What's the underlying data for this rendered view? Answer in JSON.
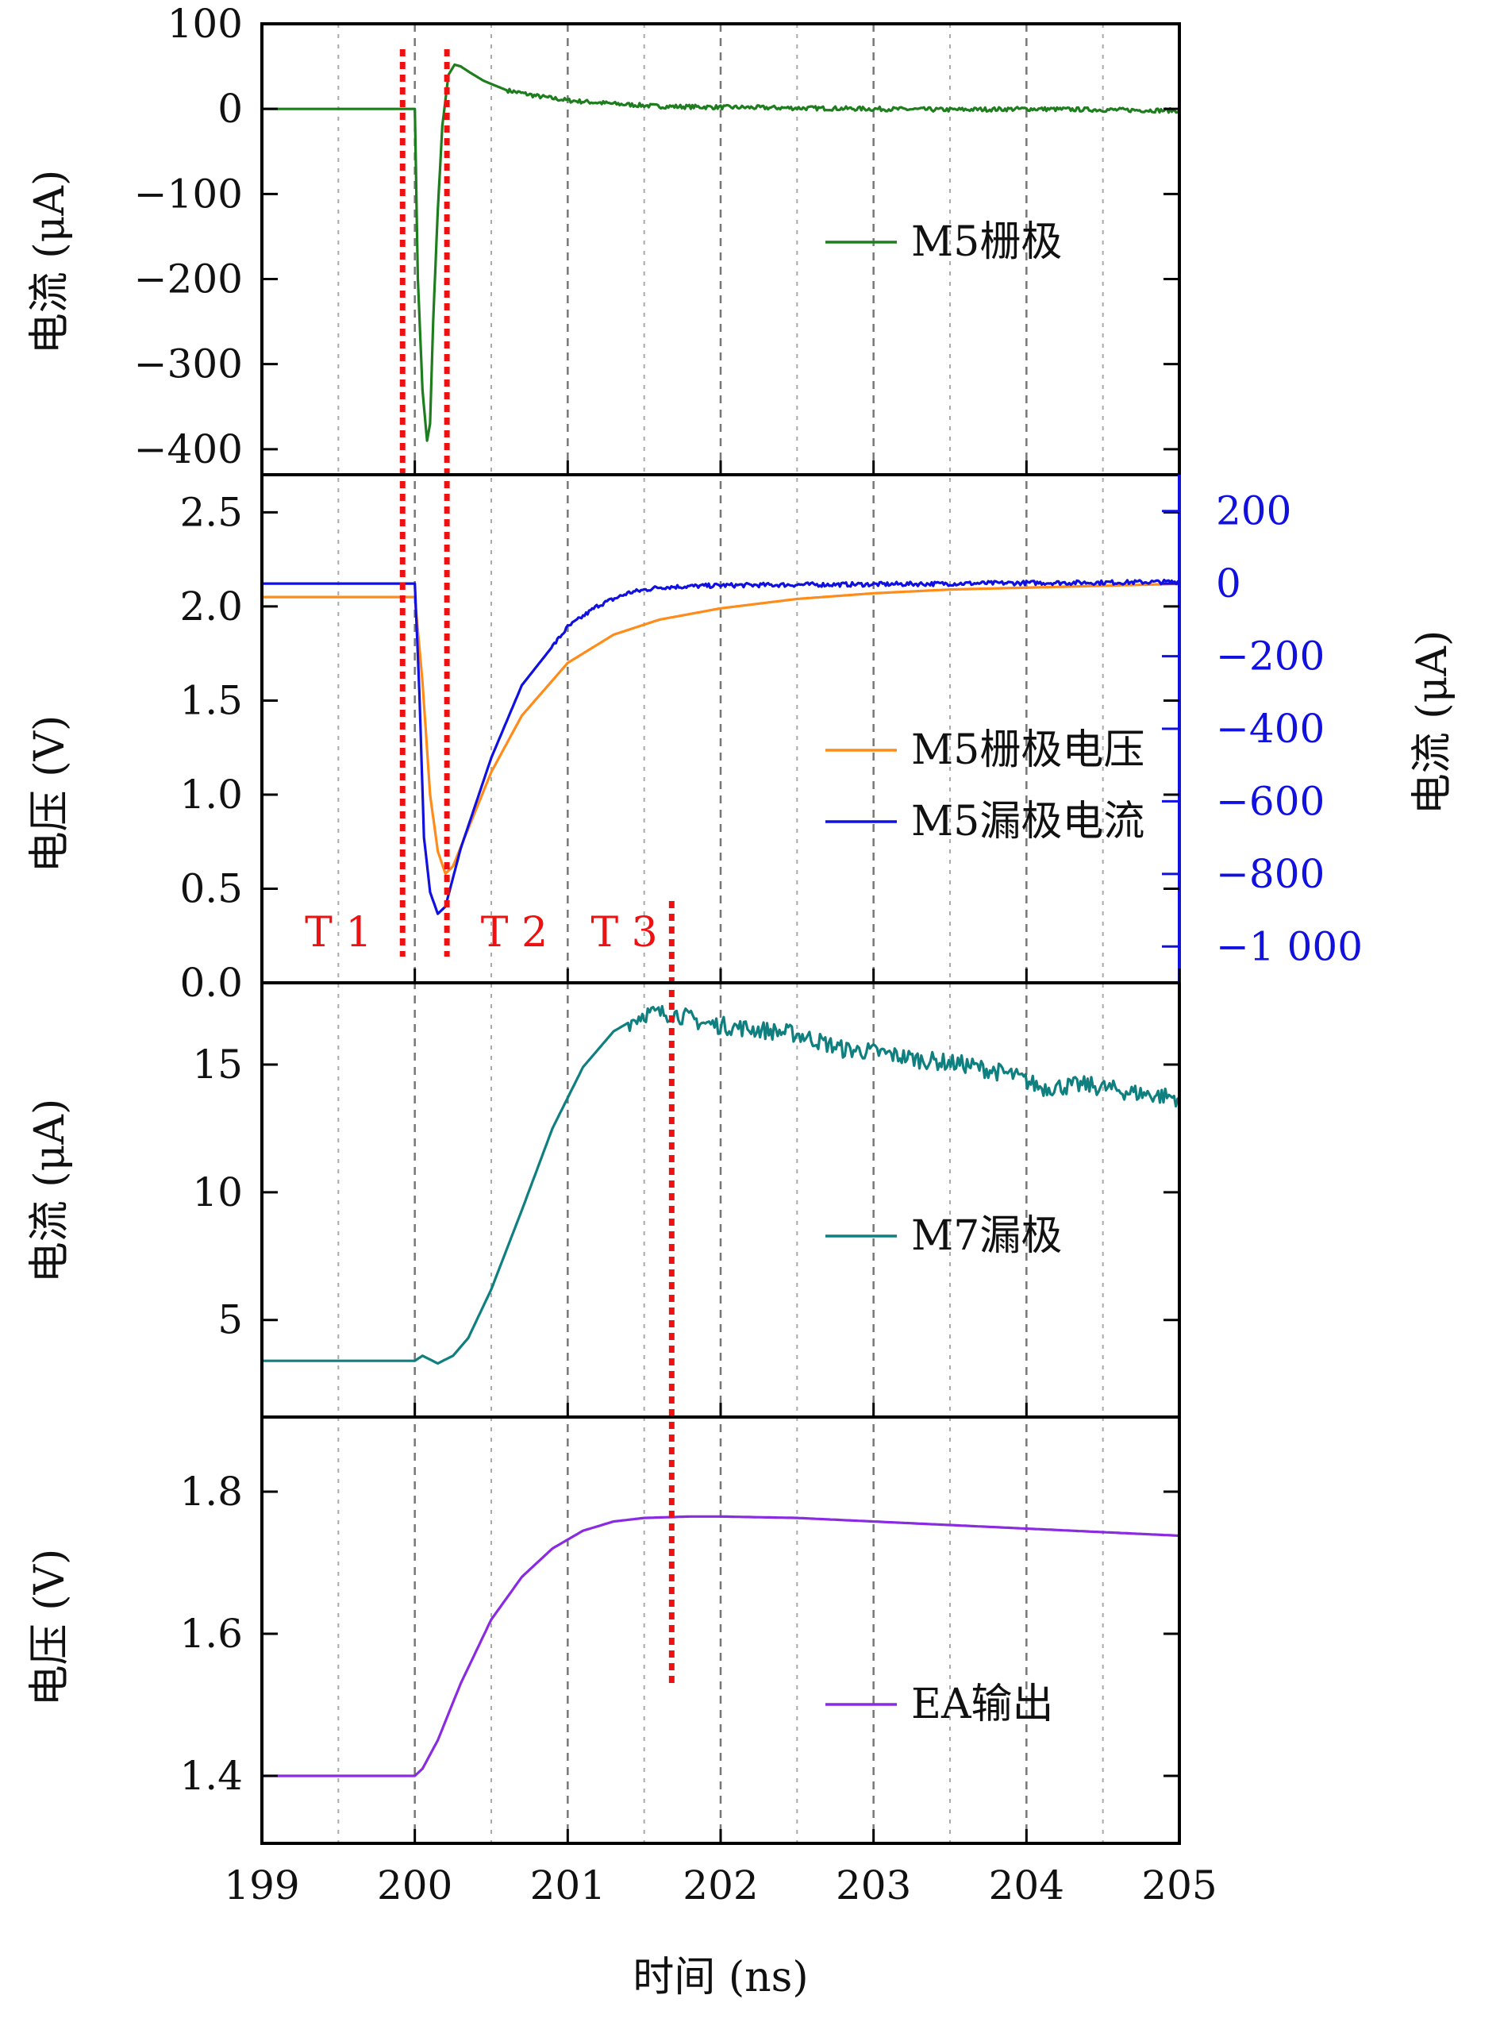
{
  "chart_data": {
    "type": "line",
    "xlabel": "时间 (ns)",
    "xlim": [
      199,
      205
    ],
    "xticks": [
      199,
      200,
      201,
      202,
      203,
      204,
      205
    ],
    "xgrid": [
      199.5,
      200,
      200.5,
      201,
      201.5,
      202,
      202.5,
      203,
      203.5,
      204,
      204.5
    ],
    "colors": {
      "m5_gate": "#1e7e1e",
      "m5_gate_voltage": "#ff8c1a",
      "m5_drain_current": "#1010e0",
      "m7_drain": "#0f7f7f",
      "ea_output": "#8a2be2",
      "markers": "#ee1111",
      "right_axis": "#1010e0"
    },
    "panels": [
      {
        "ylabel": "电流 (μA)",
        "ylim": [
          -430,
          100
        ],
        "yticks": [
          100,
          0,
          -100,
          -200,
          -300,
          -400
        ],
        "ytick_labels": [
          "100",
          "0",
          "−100",
          "−200",
          "−300",
          "−400"
        ],
        "legend_position": "right",
        "series": [
          {
            "name": "M5栅极",
            "color": "#1e7e1e",
            "x": [
              199,
              200.0,
              200.02,
              200.05,
              200.08,
              200.1,
              200.12,
              200.15,
              200.18,
              200.22,
              200.26,
              200.3,
              200.35,
              200.45,
              200.6,
              200.8,
              201.0,
              201.3,
              201.6,
              202.0,
              202.5,
              203.0,
              203.5,
              204.0,
              204.5,
              205.0
            ],
            "y": [
              0,
              0,
              -200,
              -330,
              -390,
              -370,
              -250,
              -120,
              -20,
              40,
              52,
              50,
              44,
              33,
              22,
              15,
              10,
              6,
              3,
              2,
              1,
              0,
              -1,
              0,
              -1,
              -2
            ]
          }
        ]
      },
      {
        "ylabel": "电压 (V)",
        "ylim": [
          0,
          2.7
        ],
        "yticks": [
          0.0,
          0.5,
          1.0,
          1.5,
          2.0,
          2.5
        ],
        "ytick_labels": [
          "0.0",
          "0.5",
          "1.0",
          "1.5",
          "2.0",
          "2.5"
        ],
        "y2label": "电流 (μA)",
        "y2lim": [
          -1100,
          300
        ],
        "y2ticks": [
          200,
          0,
          -200,
          -400,
          -600,
          -800,
          -1000
        ],
        "y2tick_labels": [
          "200",
          "0",
          "−200",
          "−400",
          "−600",
          "−800",
          "−1 000"
        ],
        "legend_position": "center-right",
        "series": [
          {
            "name": "M5栅极电压",
            "color": "#ff8c1a",
            "axis": "left",
            "x": [
              199,
              200.0,
              200.05,
              200.1,
              200.15,
              200.2,
              200.25,
              200.35,
              200.5,
              200.7,
              201.0,
              201.3,
              201.6,
              202.0,
              202.5,
              203.0,
              203.5,
              204.0,
              204.5,
              205.0
            ],
            "y": [
              2.05,
              2.05,
              1.6,
              1.0,
              0.7,
              0.58,
              0.62,
              0.82,
              1.12,
              1.42,
              1.7,
              1.85,
              1.93,
              1.99,
              2.04,
              2.07,
              2.09,
              2.1,
              2.11,
              2.12
            ]
          },
          {
            "name": "M5漏极电流",
            "color": "#1010e0",
            "axis": "right",
            "x": [
              199,
              200.0,
              200.03,
              200.06,
              200.1,
              200.15,
              200.2,
              200.3,
              200.5,
              200.7,
              201.0,
              201.2,
              201.4,
              201.6,
              202.0,
              202.5,
              203.0,
              203.5,
              204.0,
              204.5,
              205.0
            ],
            "y": [
              0,
              0,
              -300,
              -700,
              -850,
              -910,
              -890,
              -730,
              -480,
              -280,
              -120,
              -60,
              -25,
              -10,
              -5,
              -3,
              -2,
              0,
              2,
              3,
              5
            ]
          }
        ]
      },
      {
        "ylabel": "电流 (μA)",
        "ylim": [
          1.2,
          18.2
        ],
        "yticks": [
          5,
          10,
          15
        ],
        "ytick_labels": [
          "5",
          "10",
          "15"
        ],
        "legend_position": "right",
        "series": [
          {
            "name": "M7漏极",
            "color": "#0f7f7f",
            "x": [
              199,
              200.0,
              200.05,
              200.15,
              200.25,
              200.35,
              200.5,
              200.7,
              200.9,
              201.1,
              201.3,
              201.5,
              201.7,
              201.9,
              202.2,
              202.5,
              202.8,
              203.0,
              203.3,
              203.6,
              203.9,
              204.1,
              204.4,
              204.7,
              205.0
            ],
            "y": [
              3.4,
              3.4,
              3.6,
              3.3,
              3.6,
              4.3,
              6.2,
              9.3,
              12.5,
              14.9,
              16.3,
              17.0,
              17.0,
              16.6,
              16.4,
              16.2,
              15.6,
              15.5,
              15.2,
              15.0,
              14.6,
              14.1,
              14.2,
              13.9,
              13.7
            ]
          }
        ]
      },
      {
        "ylabel": "电压 (V)",
        "ylim": [
          1.305,
          1.905
        ],
        "yticks": [
          1.4,
          1.6,
          1.8
        ],
        "ytick_labels": [
          "1.4",
          "1.6",
          "1.8"
        ],
        "legend_position": "bottom-right",
        "series": [
          {
            "name": "EA输出",
            "color": "#8a2be2",
            "x": [
              199,
              200.0,
              200.05,
              200.15,
              200.3,
              200.5,
              200.7,
              200.9,
              201.1,
              201.3,
              201.5,
              201.8,
              202.0,
              202.5,
              203.0,
              203.5,
              204.0,
              204.5,
              205.0
            ],
            "y": [
              1.4,
              1.4,
              1.41,
              1.45,
              1.53,
              1.62,
              1.68,
              1.72,
              1.745,
              1.758,
              1.763,
              1.765,
              1.765,
              1.763,
              1.758,
              1.753,
              1.748,
              1.743,
              1.738
            ]
          }
        ]
      }
    ],
    "annotations": {
      "vertical_markers": [
        {
          "x": 199.92,
          "from_panel": 0,
          "to_panel": 1
        },
        {
          "x": 200.21,
          "from_panel": 0,
          "to_panel": 1
        },
        {
          "x": 201.68,
          "from_panel": 1,
          "to_panel": 3
        }
      ],
      "labels": [
        {
          "text": "T 1",
          "x": 199.5
        },
        {
          "text": "T 2",
          "x": 200.65
        },
        {
          "text": "T 3",
          "x": 201.37
        }
      ]
    }
  }
}
